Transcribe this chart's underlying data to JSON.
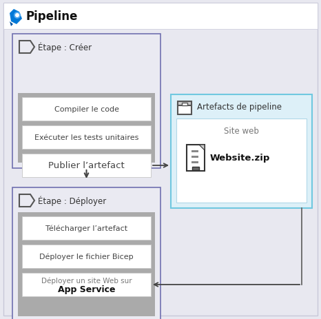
{
  "title": "Pipeline",
  "outer_bg": "#e8e8f0",
  "outer_border": "#c8c8d8",
  "stage_create_label": "Étape : Créer",
  "stage_deploy_label": "Étape : Déployer",
  "stage_bg": "#eaeaf2",
  "stage_border": "#7070b0",
  "tasks_pad_bg": "#999999",
  "task_bg": "#ffffff",
  "task_border": "#cccccc",
  "create_tasks": [
    "Compiler le code",
    "Exécuter les tests unitaires",
    "Publier l’artefact"
  ],
  "deploy_tasks": [
    "Télécharger l’artefact",
    "Déployer le fichier Bicep",
    "Déployer un site Web sur\nApp Service"
  ],
  "artifact_title": "Artefacts de pipeline",
  "artifact_label": "Site web",
  "artifact_name": "Website.zip",
  "artifact_bg": "#ddf0f8",
  "artifact_border": "#70c8e0",
  "artifact_inner_bg": "#ffffff",
  "artifact_inner_border": "#b0d8e8",
  "arrow_color": "#444444",
  "line_color": "#666666",
  "title_color": "#111111",
  "label_color": "#333333",
  "task_text_color": "#444444"
}
